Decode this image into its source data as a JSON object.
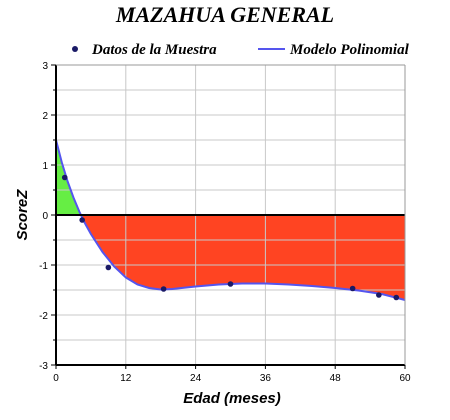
{
  "chart_data": {
    "type": "line",
    "title": "MAZAHUA GENERAL",
    "xlabel": "Edad (meses)",
    "ylabel": "ScoreZ",
    "xlim": [
      0,
      60
    ],
    "ylim": [
      -3,
      3
    ],
    "xticks": [
      "0",
      "12",
      "24",
      "36",
      "48",
      "60"
    ],
    "yticks": [
      "3",
      "2",
      "1",
      "0",
      "-1",
      "-2",
      "-3"
    ],
    "grid": true,
    "legend": [
      "Datos de la Muestra",
      "Modelo Polinomial"
    ],
    "legend_position": "top",
    "series": [
      {
        "name": "Datos de la Muestra",
        "kind": "points",
        "x": [
          1.5,
          4.5,
          9,
          18.5,
          30,
          51,
          55.5,
          58.5
        ],
        "y": [
          0.75,
          -0.1,
          -1.05,
          -1.48,
          -1.38,
          -1.47,
          -1.6,
          -1.65
        ]
      },
      {
        "name": "Modelo Polinomial",
        "kind": "line",
        "x": [
          0,
          1,
          2,
          3,
          4,
          5,
          6,
          8,
          10,
          12,
          14,
          16,
          18,
          20,
          24,
          28,
          32,
          36,
          40,
          44,
          48,
          52,
          56,
          60
        ],
        "y": [
          1.5,
          1.05,
          0.67,
          0.35,
          0.07,
          -0.17,
          -0.38,
          -0.74,
          -1.03,
          -1.25,
          -1.39,
          -1.46,
          -1.49,
          -1.48,
          -1.43,
          -1.39,
          -1.37,
          -1.37,
          -1.39,
          -1.42,
          -1.46,
          -1.51,
          -1.58,
          -1.7
        ]
      }
    ],
    "colors": {
      "points": "#1a1a66",
      "line": "#5555ee",
      "fill_positive": "#66ee44",
      "fill_negative": "#ff4422",
      "grid": "#c8c8c8",
      "zero_line": "#000000"
    }
  }
}
